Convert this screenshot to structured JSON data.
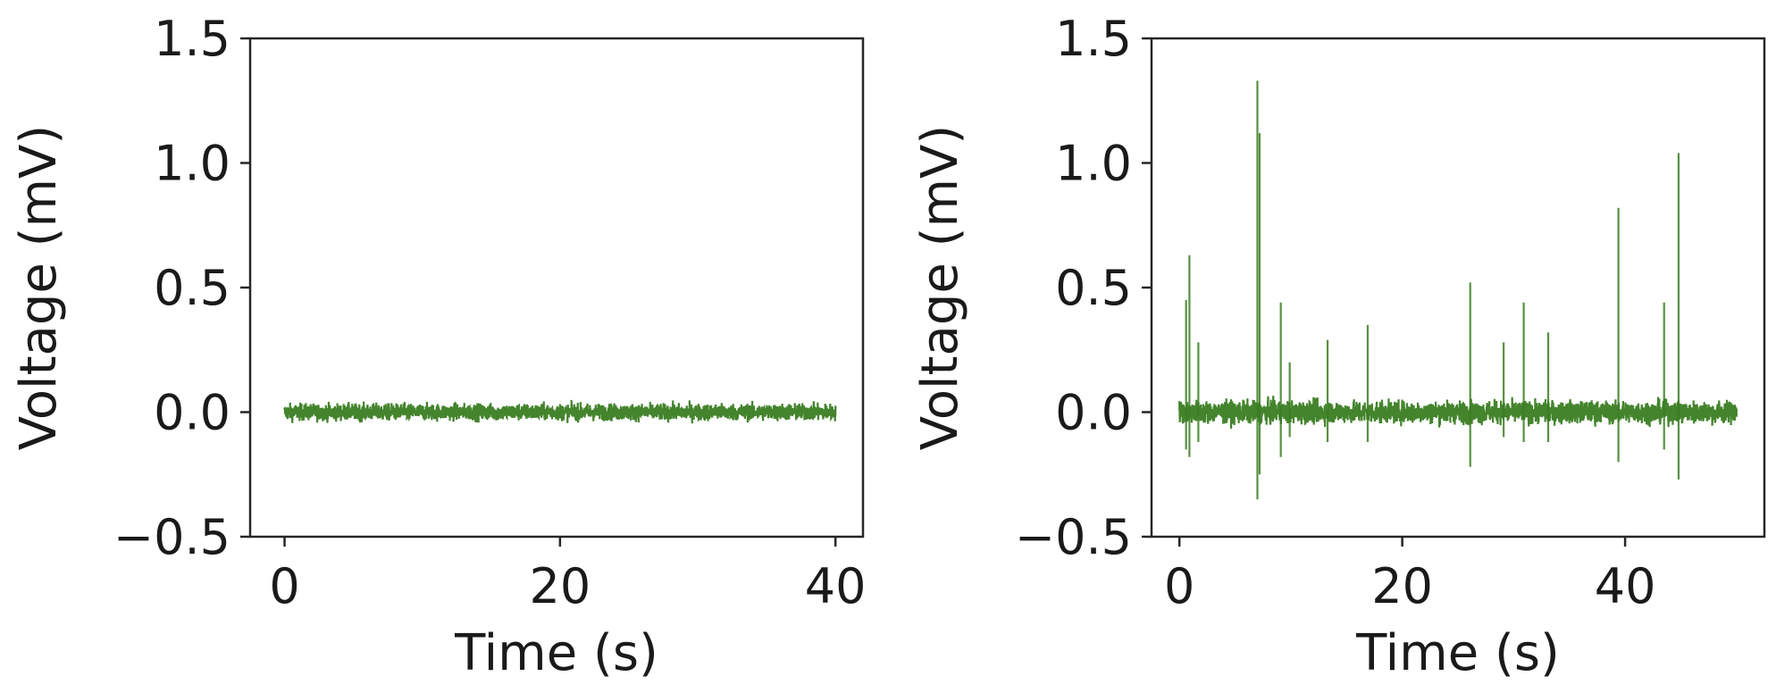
{
  "colors": {
    "trace": "#3a7d22",
    "axes": "#262626",
    "text": "#1a1a1a",
    "background": "#ffffff"
  },
  "chart_data": [
    {
      "type": "line",
      "xlabel": "Time (s)",
      "ylabel": "Voltage (mV)",
      "xlim": [
        -2.5,
        42
      ],
      "ylim": [
        -0.5,
        1.5
      ],
      "xticks": [
        0,
        20,
        40
      ],
      "yticks": [
        -0.5,
        0.0,
        0.5,
        1.0,
        1.5
      ],
      "xtick_labels": [
        "0",
        "20",
        "40"
      ],
      "ytick_labels": [
        "−0.5",
        "0.0",
        "0.5",
        "1.0",
        "1.5"
      ],
      "grid": false,
      "series": [
        {
          "color": "#3a7d22",
          "x_range": [
            0,
            40
          ],
          "baseline": 0.0,
          "noise_amplitude": 0.06,
          "spikes": []
        }
      ]
    },
    {
      "type": "line",
      "xlabel": "Time (s)",
      "ylabel": "Voltage (mV)",
      "xlim": [
        -2.5,
        52.5
      ],
      "ylim": [
        -0.5,
        1.5
      ],
      "xticks": [
        0,
        20,
        40
      ],
      "yticks": [
        -0.5,
        0.0,
        0.5,
        1.0,
        1.5
      ],
      "xtick_labels": [
        "0",
        "20",
        "40"
      ],
      "ytick_labels": [
        "−0.5",
        "0.0",
        "0.5",
        "1.0",
        "1.5"
      ],
      "grid": false,
      "series": [
        {
          "color": "#3a7d22",
          "x_range": [
            0,
            50
          ],
          "baseline": 0.0,
          "noise_amplitude": 0.08,
          "spikes": [
            {
              "t": 0.6,
              "peak": 0.45,
              "trough": -0.15
            },
            {
              "t": 0.9,
              "peak": 0.63,
              "trough": -0.18
            },
            {
              "t": 1.7,
              "peak": 0.28,
              "trough": -0.12
            },
            {
              "t": 7.0,
              "peak": 1.33,
              "trough": -0.35
            },
            {
              "t": 7.2,
              "peak": 1.12,
              "trough": -0.25
            },
            {
              "t": 9.1,
              "peak": 0.44,
              "trough": -0.18
            },
            {
              "t": 9.9,
              "peak": 0.2,
              "trough": -0.1
            },
            {
              "t": 13.3,
              "peak": 0.29,
              "trough": -0.12
            },
            {
              "t": 16.9,
              "peak": 0.35,
              "trough": -0.12
            },
            {
              "t": 26.1,
              "peak": 0.52,
              "trough": -0.22
            },
            {
              "t": 29.1,
              "peak": 0.28,
              "trough": -0.1
            },
            {
              "t": 30.9,
              "peak": 0.44,
              "trough": -0.12
            },
            {
              "t": 33.1,
              "peak": 0.32,
              "trough": -0.12
            },
            {
              "t": 39.4,
              "peak": 0.82,
              "trough": -0.2
            },
            {
              "t": 43.5,
              "peak": 0.44,
              "trough": -0.15
            },
            {
              "t": 44.8,
              "peak": 1.04,
              "trough": -0.27
            }
          ]
        }
      ]
    }
  ]
}
